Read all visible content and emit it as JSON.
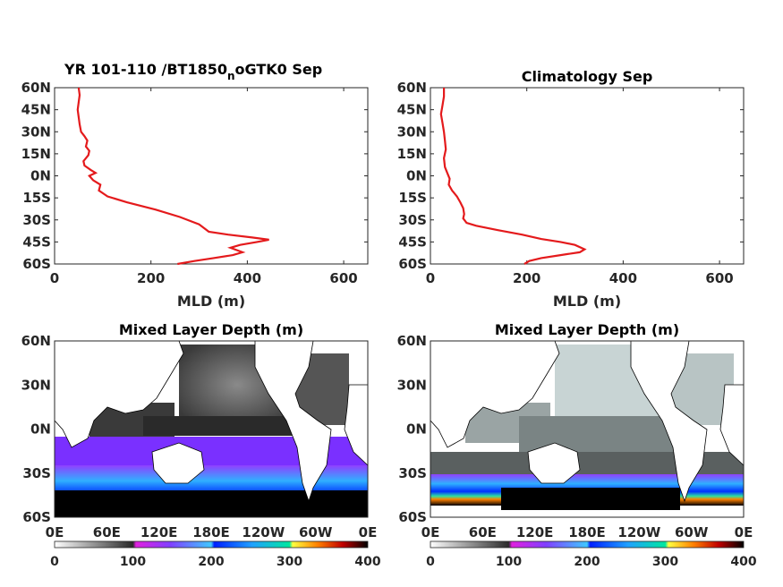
{
  "chart_data": [
    {
      "type": "line",
      "title_main": "YR 101-110 /BT1850",
      "title_sub": "n",
      "title_end": "oGTK0 Sep",
      "xlabel": "MLD (m)",
      "xlim": [
        0,
        650
      ],
      "ylim": [
        -60,
        60
      ],
      "xticks": [
        "0",
        "200",
        "400",
        "600"
      ],
      "xtick_values": [
        0,
        200,
        400,
        600
      ],
      "yticks": [
        "60N",
        "45N",
        "30N",
        "15N",
        "0N",
        "15S",
        "30S",
        "45S",
        "60S"
      ],
      "ytick_values": [
        60,
        45,
        30,
        15,
        0,
        -15,
        -30,
        -45,
        -60
      ],
      "line_color": "#e41a1c",
      "series": [
        {
          "x": [
            50,
            52,
            50,
            48,
            50,
            52,
            55,
            62,
            68,
            65,
            72,
            70,
            60,
            62,
            75,
            85,
            72,
            80,
            95,
            92,
            110,
            150,
            210,
            260,
            300,
            320,
            360,
            410,
            445,
            420,
            385,
            365,
            390,
            370,
            330,
            290,
            255
          ],
          "y": [
            60,
            55,
            50,
            45,
            40,
            35,
            30,
            27,
            24,
            20,
            17,
            14,
            10,
            7,
            4,
            2,
            0,
            -3,
            -6,
            -10,
            -14,
            -18,
            -23,
            -28,
            -33,
            -38,
            -40,
            -42,
            -43.5,
            -45,
            -47,
            -49,
            -52,
            -54,
            -56,
            -58,
            -60
          ]
        }
      ]
    },
    {
      "type": "line",
      "title_main": "Climatology Sep",
      "xlabel": "MLD (m)",
      "xlim": [
        0,
        650
      ],
      "ylim": [
        -60,
        60
      ],
      "xticks": [
        "0",
        "200",
        "400",
        "600"
      ],
      "xtick_values": [
        0,
        200,
        400,
        600
      ],
      "yticks": [
        "60N",
        "45N",
        "30N",
        "15N",
        "0N",
        "15S",
        "30S",
        "45S",
        "60S"
      ],
      "ytick_values": [
        60,
        45,
        30,
        15,
        0,
        -15,
        -30,
        -45,
        -60
      ],
      "line_color": "#e41a1c",
      "series": [
        {
          "x": [
            28,
            28,
            25,
            22,
            25,
            28,
            30,
            32,
            28,
            30,
            35,
            40,
            38,
            45,
            55,
            62,
            68,
            70,
            68,
            75,
            95,
            140,
            190,
            230,
            270,
            300,
            320,
            310,
            270,
            230,
            205,
            195
          ],
          "y": [
            60,
            54,
            48,
            42,
            36,
            30,
            24,
            18,
            12,
            6,
            2,
            -2,
            -6,
            -10,
            -14,
            -18,
            -22,
            -26,
            -29,
            -32,
            -34,
            -37,
            -40,
            -43,
            -45,
            -47,
            -50,
            -52,
            -54,
            -56,
            -58,
            -60
          ]
        }
      ]
    },
    {
      "type": "heatmap",
      "title_main": "Mixed Layer Depth (m)",
      "yticks": [
        "60N",
        "30N",
        "0N",
        "30S",
        "60S"
      ],
      "xticks": [
        "0E",
        "60E",
        "120E",
        "180E",
        "120W",
        "60W",
        "0E"
      ],
      "colorbar_ticks": [
        "0",
        "100",
        "200",
        "300",
        "400"
      ],
      "colorbar_range": [
        0,
        400
      ]
    },
    {
      "type": "heatmap",
      "title_main": "Mixed Layer Depth (m)",
      "yticks": [
        "60N",
        "30N",
        "0N",
        "30S",
        "60S"
      ],
      "xticks": [
        "0E",
        "60E",
        "120E",
        "180E",
        "120W",
        "60W",
        "0E"
      ],
      "colorbar_ticks": [
        "0",
        "100",
        "200",
        "300",
        "400"
      ],
      "colorbar_range": [
        0,
        400
      ]
    }
  ]
}
